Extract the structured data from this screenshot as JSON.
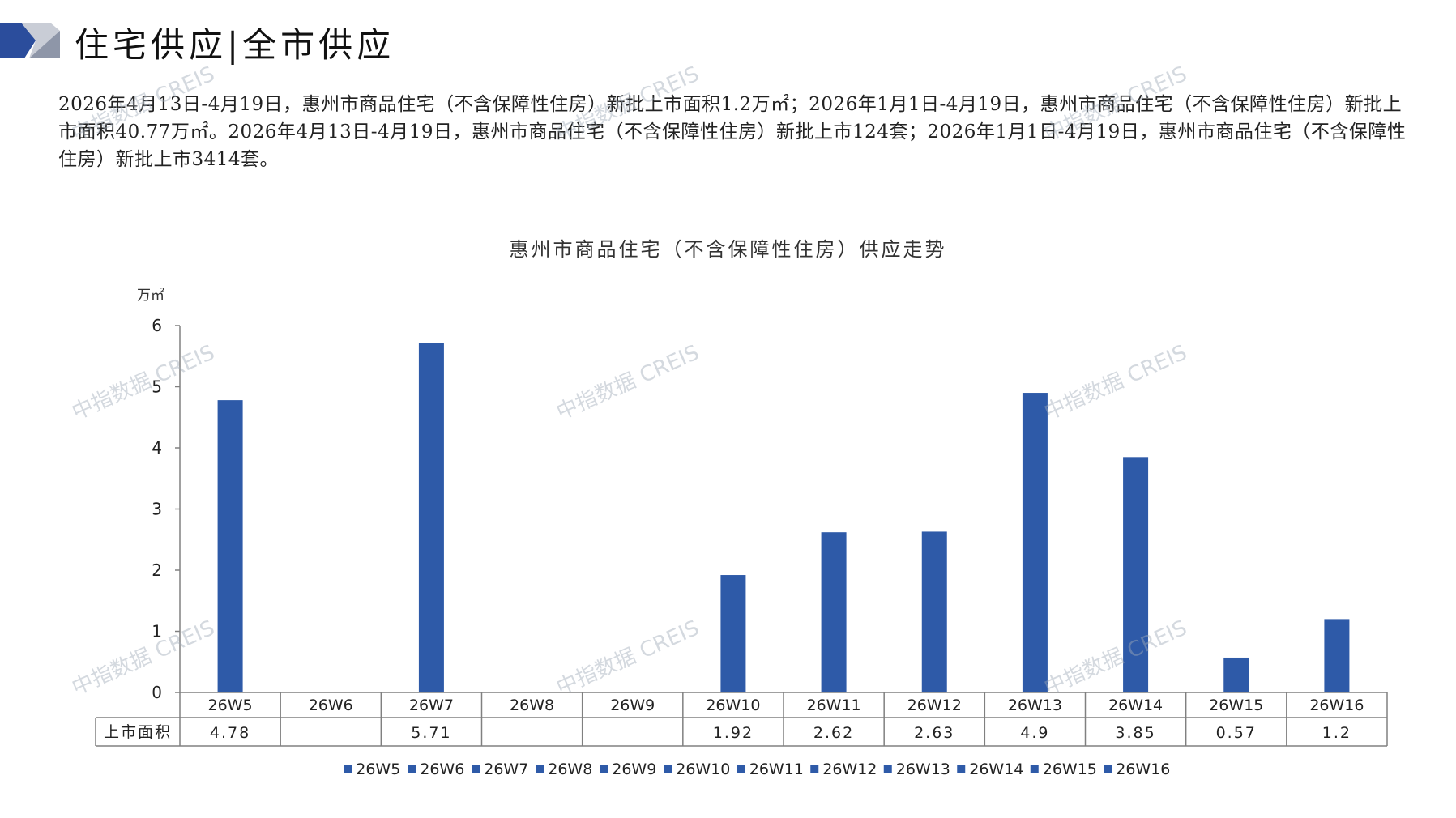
{
  "page": {
    "title": "住宅供应|全市供应",
    "summary": "2026年4月13日-4月19日，惠州市商品住宅（不含保障性住房）新批上市面积1.2万㎡；2026年1月1日-4月19日，惠州市商品住宅（不含保障性住房）新批上市面积40.77万㎡。2026年4月13日-4月19日，惠州市商品住宅（不含保障性住房）新批上市124套；2026年1月1日-4月19日，惠州市商品住宅（不含保障性住房）新批上市3414套。",
    "watermark": "中指数据 CREIS"
  },
  "colors": {
    "bar": "#2E5AA8",
    "accent_dark": "#2B4D9C",
    "accent_light": "#9AA3B5"
  },
  "chart_data": {
    "type": "bar",
    "title": "惠州市商品住宅（不含保障性住房）供应走势",
    "yunit": "万㎡",
    "ylim": [
      0,
      6
    ],
    "yticks": [
      0,
      1,
      2,
      3,
      4,
      5,
      6
    ],
    "grid": false,
    "legend_position": "bottom",
    "categories": [
      "26W5",
      "26W6",
      "26W7",
      "26W8",
      "26W9",
      "26W10",
      "26W11",
      "26W12",
      "26W13",
      "26W14",
      "26W15",
      "26W16"
    ],
    "series": [
      {
        "name": "上市面积",
        "values": [
          4.78,
          null,
          5.71,
          null,
          null,
          1.92,
          2.62,
          2.63,
          4.9,
          3.85,
          0.57,
          1.2
        ],
        "labels": [
          "4.78",
          "",
          "5.71",
          "",
          "",
          "1.92",
          "2.62",
          "2.63",
          "4.9",
          "3.85",
          "0.57",
          "1.2"
        ]
      }
    ],
    "legend": [
      "26W5",
      "26W6",
      "26W7",
      "26W8",
      "26W9",
      "26W10",
      "26W11",
      "26W12",
      "26W13",
      "26W14",
      "26W15",
      "26W16"
    ]
  }
}
